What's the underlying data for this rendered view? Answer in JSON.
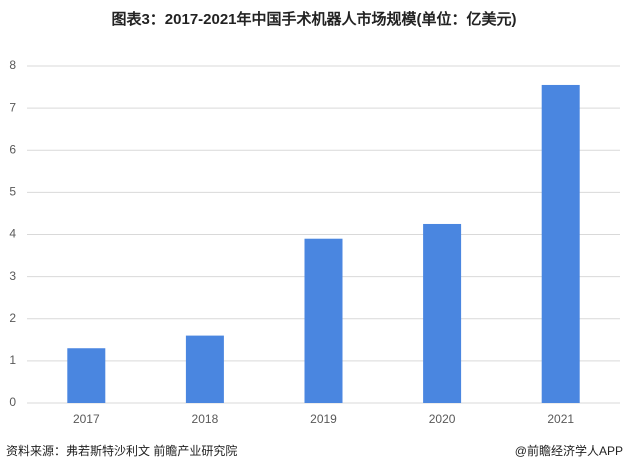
{
  "chart_data": {
    "type": "bar",
    "title": "图表3：2017-2021年中国手术机器人市场规模(单位：亿美元)",
    "categories": [
      "2017",
      "2018",
      "2019",
      "2020",
      "2021"
    ],
    "values": [
      1.3,
      1.6,
      3.9,
      4.25,
      7.55
    ],
    "color": "#4a86e0",
    "ylim": [
      0,
      8
    ],
    "yticks": [
      0,
      1,
      2,
      3,
      4,
      5,
      6,
      7,
      8
    ],
    "grid": true,
    "source": "资料来源：弗若斯特沙利文 前瞻产业研究院",
    "credit": "@前瞻经济学人APP"
  }
}
